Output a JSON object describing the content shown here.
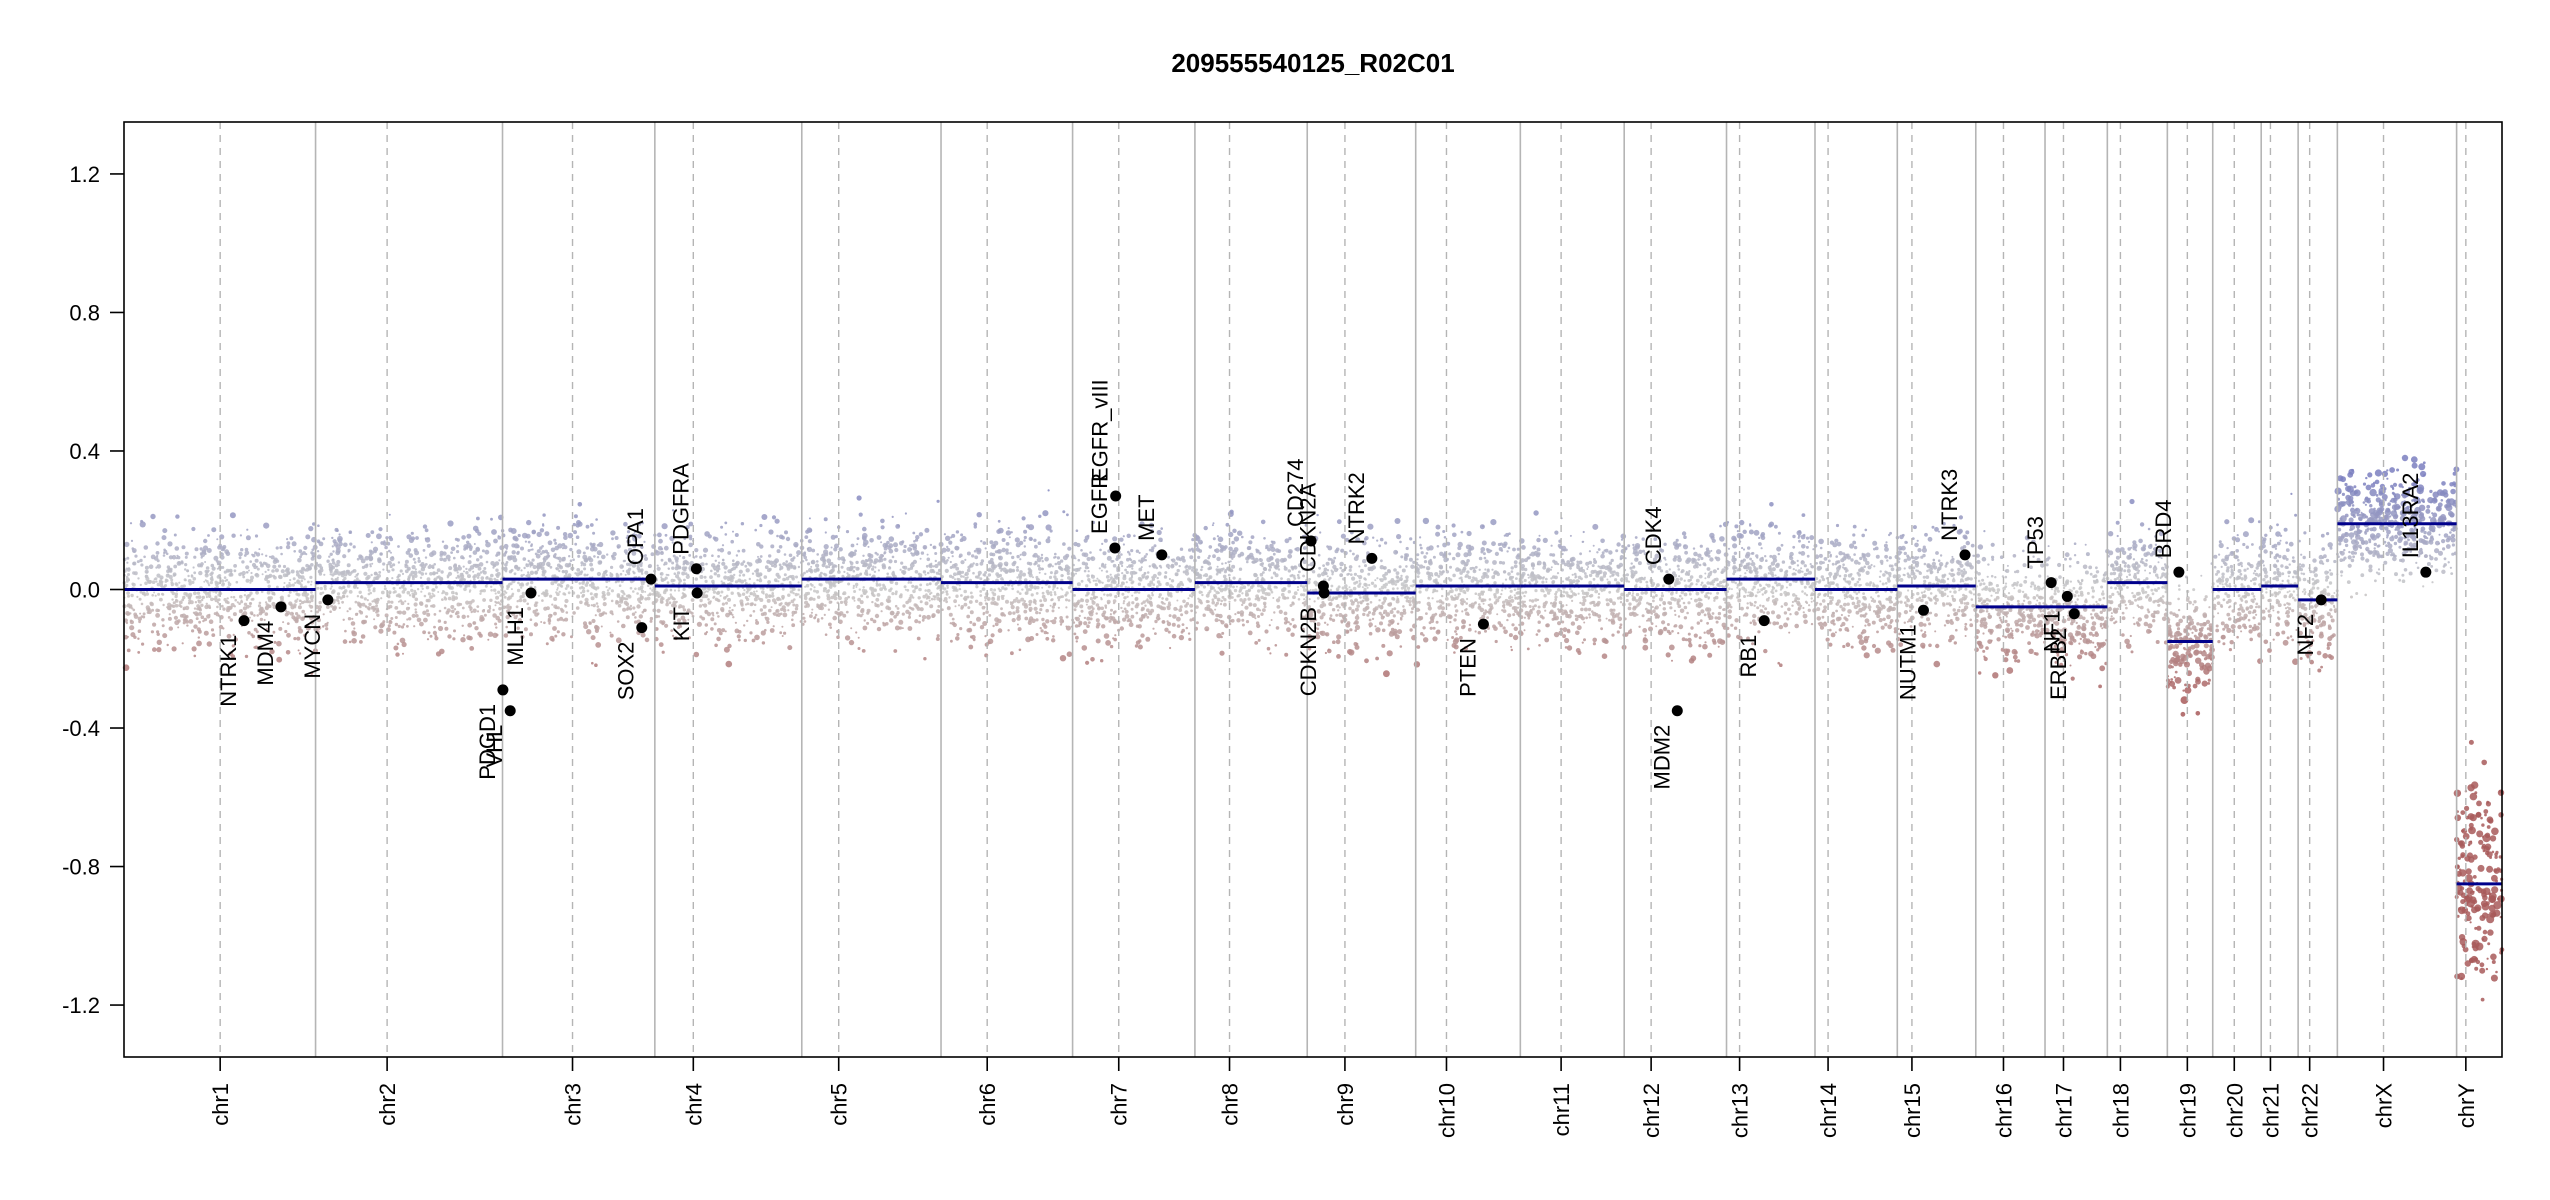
{
  "chart_data": {
    "type": "scatter",
    "title": "209555540125_R02C01",
    "xlabel": "",
    "ylabel": "",
    "ylim": [
      -1.35,
      1.35
    ],
    "y_ticks": [
      "-1.2",
      "-0.8",
      "-0.4",
      "0.0",
      "0.4",
      "0.8",
      "1.2"
    ],
    "colors": {
      "gain": "#7b7fbf",
      "loss": "#a85a5a",
      "segment": "#00008b",
      "neutral": "#c8c8c8"
    },
    "chromosomes": [
      {
        "name": "chr1",
        "length": 249,
        "centromere": 125,
        "segments": [
          {
            "start": 0,
            "end": 249,
            "value": 0.0
          }
        ]
      },
      {
        "name": "chr2",
        "length": 243,
        "centromere": 93,
        "segments": [
          {
            "start": 0,
            "end": 243,
            "value": 0.02
          }
        ]
      },
      {
        "name": "chr3",
        "length": 198,
        "centromere": 91,
        "segments": [
          {
            "start": 0,
            "end": 198,
            "value": 0.03
          }
        ]
      },
      {
        "name": "chr4",
        "length": 191,
        "centromere": 50,
        "segments": [
          {
            "start": 0,
            "end": 191,
            "value": 0.01
          }
        ]
      },
      {
        "name": "chr5",
        "length": 181,
        "centromere": 48,
        "segments": [
          {
            "start": 0,
            "end": 181,
            "value": 0.03
          }
        ]
      },
      {
        "name": "chr6",
        "length": 171,
        "centromere": 60,
        "segments": [
          {
            "start": 0,
            "end": 171,
            "value": 0.02
          }
        ]
      },
      {
        "name": "chr7",
        "length": 159,
        "centromere": 60,
        "segments": [
          {
            "start": 0,
            "end": 159,
            "value": 0.0
          }
        ]
      },
      {
        "name": "chr8",
        "length": 146,
        "centromere": 45,
        "segments": [
          {
            "start": 0,
            "end": 146,
            "value": 0.02
          }
        ]
      },
      {
        "name": "chr9",
        "length": 141,
        "centromere": 49,
        "segments": [
          {
            "start": 0,
            "end": 141,
            "value": -0.01
          }
        ]
      },
      {
        "name": "chr10",
        "length": 136,
        "centromere": 40,
        "segments": [
          {
            "start": 0,
            "end": 136,
            "value": 0.01
          }
        ]
      },
      {
        "name": "chr11",
        "length": 135,
        "centromere": 53,
        "segments": [
          {
            "start": 0,
            "end": 135,
            "value": 0.01
          }
        ]
      },
      {
        "name": "chr12",
        "length": 133,
        "centromere": 35,
        "segments": [
          {
            "start": 0,
            "end": 133,
            "value": 0.0
          }
        ]
      },
      {
        "name": "chr13",
        "length": 115,
        "centromere": 17,
        "segments": [
          {
            "start": 0,
            "end": 115,
            "value": 0.03
          }
        ]
      },
      {
        "name": "chr14",
        "length": 107,
        "centromere": 17,
        "segments": [
          {
            "start": 0,
            "end": 107,
            "value": 0.0
          }
        ]
      },
      {
        "name": "chr15",
        "length": 102,
        "centromere": 19,
        "segments": [
          {
            "start": 0,
            "end": 102,
            "value": 0.01
          }
        ]
      },
      {
        "name": "chr16",
        "length": 90,
        "centromere": 36,
        "segments": [
          {
            "start": 0,
            "end": 90,
            "value": -0.05
          }
        ]
      },
      {
        "name": "chr17",
        "length": 81,
        "centromere": 24,
        "segments": [
          {
            "start": 0,
            "end": 81,
            "value": -0.05
          }
        ]
      },
      {
        "name": "chr18",
        "length": 78,
        "centromere": 17,
        "segments": [
          {
            "start": 0,
            "end": 78,
            "value": 0.02
          }
        ]
      },
      {
        "name": "chr19",
        "length": 59,
        "centromere": 26,
        "segments": [
          {
            "start": 0,
            "end": 59,
            "value": -0.15
          }
        ]
      },
      {
        "name": "chr20",
        "length": 63,
        "centromere": 28,
        "segments": [
          {
            "start": 0,
            "end": 63,
            "value": 0.0
          }
        ]
      },
      {
        "name": "chr21",
        "length": 48,
        "centromere": 12,
        "segments": [
          {
            "start": 0,
            "end": 48,
            "value": 0.01
          }
        ]
      },
      {
        "name": "chr22",
        "length": 51,
        "centromere": 15,
        "segments": [
          {
            "start": 0,
            "end": 51,
            "value": -0.03
          }
        ]
      },
      {
        "name": "chrX",
        "length": 155,
        "centromere": 60,
        "segments": [
          {
            "start": 0,
            "end": 155,
            "value": 0.19
          }
        ]
      },
      {
        "name": "chrY",
        "length": 59,
        "centromere": 12,
        "segments": [
          {
            "start": 0,
            "end": 59,
            "value": -0.85
          }
        ]
      }
    ],
    "genes": [
      {
        "name": "NTRK1",
        "chr": "chr1",
        "pos": 156,
        "value": -0.09
      },
      {
        "name": "MDM4",
        "chr": "chr1",
        "pos": 204,
        "value": -0.05
      },
      {
        "name": "MYCN",
        "chr": "chr2",
        "pos": 16,
        "value": -0.03
      },
      {
        "name": "PDGD1",
        "chr": "chr3",
        "pos": 0.5,
        "value": -0.29
      },
      {
        "name": "VHL",
        "chr": "chr3",
        "pos": 10,
        "value": -0.35
      },
      {
        "name": "MLH1",
        "chr": "chr3",
        "pos": 37,
        "value": -0.01
      },
      {
        "name": "SOX2",
        "chr": "chr3",
        "pos": 181,
        "value": -0.11
      },
      {
        "name": "OPA1",
        "chr": "chr3",
        "pos": 193,
        "value": 0.03
      },
      {
        "name": "KIT",
        "chr": "chr4",
        "pos": 55,
        "value": -0.01
      },
      {
        "name": "PDGFRA",
        "chr": "chr4",
        "pos": 54,
        "value": 0.06
      },
      {
        "name": "EGFR",
        "chr": "chr7",
        "pos": 55,
        "value": 0.12
      },
      {
        "name": "EGFR_vIII",
        "chr": "chr7",
        "pos": 56,
        "value": 0.27
      },
      {
        "name": "MET",
        "chr": "chr7",
        "pos": 116,
        "value": 0.1
      },
      {
        "name": "CD274",
        "chr": "chr9",
        "pos": 5,
        "value": 0.14
      },
      {
        "name": "CDKN2A",
        "chr": "chr9",
        "pos": 21,
        "value": 0.01
      },
      {
        "name": "CDKN2B",
        "chr": "chr9",
        "pos": 22,
        "value": -0.01
      },
      {
        "name": "NTRK2",
        "chr": "chr9",
        "pos": 84,
        "value": 0.09
      },
      {
        "name": "PTEN",
        "chr": "chr10",
        "pos": 88,
        "value": -0.1
      },
      {
        "name": "CDK4",
        "chr": "chr12",
        "pos": 58,
        "value": 0.03
      },
      {
        "name": "MDM2",
        "chr": "chr12",
        "pos": 69,
        "value": -0.35
      },
      {
        "name": "RB1",
        "chr": "chr13",
        "pos": 49,
        "value": -0.09
      },
      {
        "name": "NUTM1",
        "chr": "chr15",
        "pos": 34,
        "value": -0.06
      },
      {
        "name": "NTRK3",
        "chr": "chr15",
        "pos": 88,
        "value": 0.1
      },
      {
        "name": "TP53",
        "chr": "chr17",
        "pos": 8,
        "value": 0.02
      },
      {
        "name": "NF1",
        "chr": "chr17",
        "pos": 29,
        "value": -0.02
      },
      {
        "name": "ERBB2",
        "chr": "chr17",
        "pos": 38,
        "value": -0.07
      },
      {
        "name": "BRD4",
        "chr": "chr19",
        "pos": 15,
        "value": 0.05
      },
      {
        "name": "NF2",
        "chr": "chr22",
        "pos": 30,
        "value": -0.03
      },
      {
        "name": "IL13RA2",
        "chr": "chrX",
        "pos": 115,
        "value": 0.05
      }
    ]
  }
}
